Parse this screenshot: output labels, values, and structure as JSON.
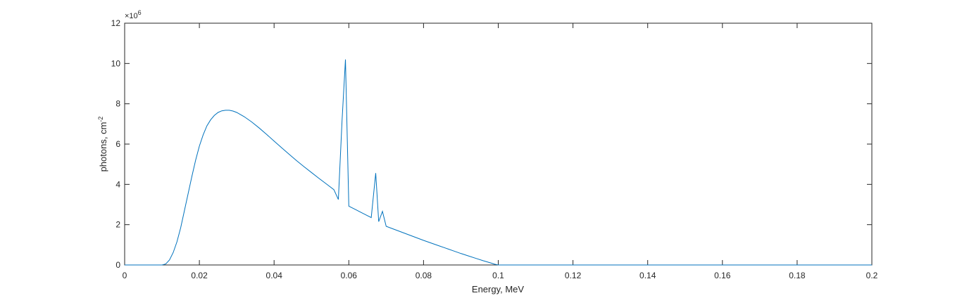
{
  "chart_data": {
    "type": "line",
    "xlabel": "Energy, MeV",
    "ylabel_main": "photons, cm",
    "ylabel_sup": "-2",
    "y_exponent_base": "×10",
    "y_exponent_power": "6",
    "xlim": [
      0,
      0.2
    ],
    "ylim": [
      0,
      12
    ],
    "xticks": [
      "0",
      "0.02",
      "0.04",
      "0.06",
      "0.08",
      "0.1",
      "0.12",
      "0.14",
      "0.16",
      "0.18",
      "0.2"
    ],
    "yticks": [
      "0",
      "2",
      "4",
      "6",
      "8",
      "10",
      "12"
    ],
    "xtick_values": [
      0,
      0.02,
      0.04,
      0.06,
      0.08,
      0.1,
      0.12,
      0.14,
      0.16,
      0.18,
      0.2
    ],
    "ytick_values": [
      0,
      2,
      4,
      6,
      8,
      10,
      12
    ],
    "grid": false,
    "line_color": "#0072BD",
    "series": [
      {
        "x": [
          0,
          0.01,
          0.011,
          0.012,
          0.013,
          0.014,
          0.015,
          0.016,
          0.017,
          0.018,
          0.019,
          0.02,
          0.021,
          0.022,
          0.023,
          0.024,
          0.025,
          0.026,
          0.027,
          0.028,
          0.029,
          0.03,
          0.032,
          0.034,
          0.036,
          0.038,
          0.04,
          0.042,
          0.044,
          0.046,
          0.048,
          0.05,
          0.052,
          0.054,
          0.056,
          0.0572,
          0.0582,
          0.0591,
          0.06,
          0.062,
          0.064,
          0.066,
          0.0672,
          0.068,
          0.069,
          0.07,
          0.072,
          0.074,
          0.076,
          0.078,
          0.08,
          0.082,
          0.084,
          0.086,
          0.088,
          0.09,
          0.092,
          0.094,
          0.096,
          0.098,
          0.099,
          0.1,
          0.2
        ],
        "y": [
          0,
          0,
          0.05,
          0.25,
          0.62,
          1.15,
          1.85,
          2.7,
          3.55,
          4.4,
          5.2,
          5.9,
          6.45,
          6.9,
          7.2,
          7.42,
          7.57,
          7.65,
          7.68,
          7.68,
          7.64,
          7.57,
          7.36,
          7.1,
          6.8,
          6.48,
          6.15,
          5.82,
          5.5,
          5.18,
          4.88,
          4.59,
          4.3,
          4.02,
          3.74,
          3.25,
          7.2,
          10.2,
          2.92,
          2.73,
          2.54,
          2.35,
          4.56,
          2.15,
          2.66,
          1.92,
          1.78,
          1.64,
          1.5,
          1.36,
          1.22,
          1.09,
          0.96,
          0.83,
          0.7,
          0.57,
          0.45,
          0.33,
          0.21,
          0.1,
          0.04,
          0,
          0
        ]
      }
    ]
  }
}
